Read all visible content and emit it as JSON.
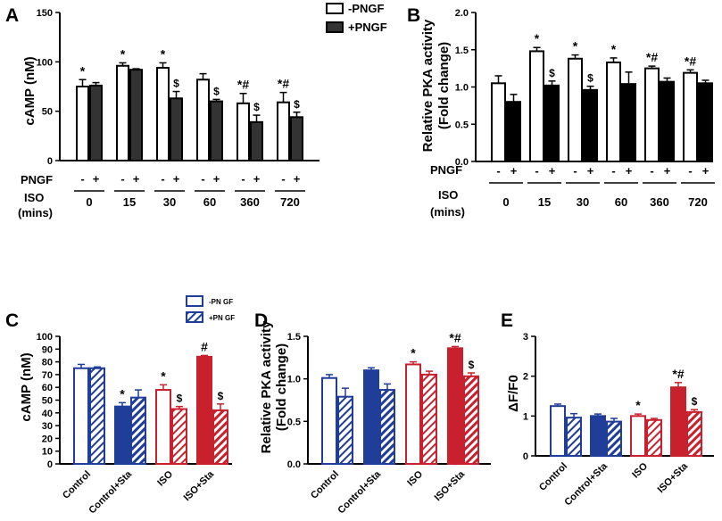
{
  "chart_data": [
    {
      "id": "A",
      "panel_label": "A",
      "type": "bar",
      "ylabel": "cAMP (nM)",
      "ylim": [
        0,
        150
      ],
      "yticks": [
        0,
        50,
        100,
        150
      ],
      "row_labels": {
        "pngf": "PNGF",
        "iso": "ISO",
        "iso_unit": "(mins)"
      },
      "pngf_signs": [
        "-",
        "+"
      ],
      "categories": [
        "0",
        "15",
        "30",
        "60",
        "360",
        "720"
      ],
      "legend": [
        "-PNGF",
        "+PNGF"
      ],
      "series": [
        {
          "name": "-PNGF",
          "values": [
            75,
            96,
            94,
            82,
            58,
            59
          ],
          "errors": [
            7,
            3,
            5,
            6,
            10,
            10
          ],
          "fill": "#ffffff",
          "stroke": "#000000",
          "pattern": "none"
        },
        {
          "name": "+PNGF",
          "values": [
            76,
            92,
            63,
            60,
            39,
            44
          ],
          "errors": [
            3,
            1,
            7,
            2,
            7,
            5
          ],
          "fill": "#333333",
          "stroke": "#000000",
          "pattern": "none"
        }
      ],
      "annotations": [
        [
          "*",
          "*",
          "*",
          "",
          "*#",
          "*#"
        ],
        [
          "",
          "",
          "$",
          "$",
          "$",
          "$"
        ]
      ]
    },
    {
      "id": "B",
      "panel_label": "B",
      "type": "bar",
      "ylabel": "Relative PKA activity",
      "ylabel2": "(Fold change)",
      "ylim": [
        0,
        2.0
      ],
      "yticks": [
        0.0,
        0.5,
        1.0,
        1.5,
        2.0
      ],
      "row_labels": {
        "pngf": "PNGF",
        "iso": "ISO",
        "iso_unit": "(mins)"
      },
      "pngf_signs": [
        "-",
        "+"
      ],
      "categories": [
        "0",
        "15",
        "30",
        "60",
        "360",
        "720"
      ],
      "series": [
        {
          "name": "-PNGF",
          "values": [
            1.05,
            1.48,
            1.38,
            1.33,
            1.25,
            1.19
          ],
          "errors": [
            0.1,
            0.05,
            0.05,
            0.06,
            0.03,
            0.04
          ],
          "fill": "#ffffff",
          "stroke": "#000000",
          "pattern": "none"
        },
        {
          "name": "+PNGF",
          "values": [
            0.8,
            1.02,
            0.96,
            1.04,
            1.07,
            1.05
          ],
          "errors": [
            0.1,
            0.06,
            0.05,
            0.16,
            0.05,
            0.04
          ],
          "fill": "#000000",
          "stroke": "#000000",
          "pattern": "none"
        }
      ],
      "annotations": [
        [
          "",
          "*",
          "*",
          "*",
          "*#",
          "*#"
        ],
        [
          "",
          "$",
          "$",
          "",
          "",
          ""
        ]
      ]
    },
    {
      "id": "C",
      "panel_label": "C",
      "type": "bar",
      "ylabel": "cAMP (nM)",
      "ylim": [
        0,
        100
      ],
      "yticks": [
        0,
        10,
        20,
        30,
        40,
        50,
        60,
        70,
        80,
        90,
        100
      ],
      "categories": [
        "Control",
        "Control+Sta",
        "ISO",
        "ISO+Sta"
      ],
      "legend": [
        "-PN GF",
        "+PN GF"
      ],
      "series": [
        {
          "name": "-PN GF",
          "values": [
            75,
            45,
            58,
            84
          ],
          "errors": [
            3,
            3,
            4,
            1
          ],
          "fill": [
            "#ffffff",
            "#1f3d99",
            "#ffffff",
            "#c8202d"
          ],
          "stroke": [
            "#1f3d99",
            "#1f3d99",
            "#c8202d",
            "#c8202d"
          ],
          "pattern": "none"
        },
        {
          "name": "+PN GF",
          "values": [
            75,
            52,
            43,
            42
          ],
          "errors": [
            1,
            6,
            2,
            5
          ],
          "fill": [
            "#ffffff",
            "#1f3d99",
            "#ffffff",
            "#c8202d"
          ],
          "stroke": [
            "#1f3d99",
            "#1f3d99",
            "#c8202d",
            "#c8202d"
          ],
          "pattern": "hatch"
        }
      ],
      "annotations": [
        [
          "",
          "*",
          "*",
          "#"
        ],
        [
          "",
          "",
          "$",
          "$"
        ]
      ]
    },
    {
      "id": "D",
      "panel_label": "D",
      "type": "bar",
      "ylabel": "Relative PKA activity",
      "ylabel2": "(Fold change)",
      "ylim": [
        0,
        1.5
      ],
      "yticks": [
        0.0,
        0.5,
        1.0,
        1.5
      ],
      "categories": [
        "Control",
        "Control+Sta",
        "ISO",
        "ISO+Sta"
      ],
      "series": [
        {
          "name": "-PN GF",
          "values": [
            1.01,
            1.1,
            1.17,
            1.36
          ],
          "errors": [
            0.04,
            0.03,
            0.03,
            0.02
          ],
          "fill": [
            "#ffffff",
            "#1f3d99",
            "#ffffff",
            "#c8202d"
          ],
          "stroke": [
            "#1f3d99",
            "#1f3d99",
            "#c8202d",
            "#c8202d"
          ],
          "pattern": "none"
        },
        {
          "name": "+PN GF",
          "values": [
            0.79,
            0.87,
            1.05,
            1.03
          ],
          "errors": [
            0.1,
            0.07,
            0.04,
            0.04
          ],
          "fill": [
            "#ffffff",
            "#1f3d99",
            "#ffffff",
            "#c8202d"
          ],
          "stroke": [
            "#1f3d99",
            "#1f3d99",
            "#c8202d",
            "#c8202d"
          ],
          "pattern": "hatch"
        }
      ],
      "annotations": [
        [
          "",
          "",
          "*",
          "*#"
        ],
        [
          "",
          "",
          "",
          "$"
        ]
      ]
    },
    {
      "id": "E",
      "panel_label": "E",
      "type": "bar",
      "ylabel": "ΔF/F0",
      "ylim": [
        0,
        3
      ],
      "yticks": [
        0,
        1,
        2,
        3
      ],
      "categories": [
        "Control",
        "Control+Sta",
        "ISO",
        "ISO+Sta"
      ],
      "series": [
        {
          "name": "-PN GF",
          "values": [
            1.25,
            1.0,
            1.0,
            1.72
          ],
          "errors": [
            0.05,
            0.05,
            0.05,
            0.12
          ],
          "fill": [
            "#ffffff",
            "#1f3d99",
            "#ffffff",
            "#c8202d"
          ],
          "stroke": [
            "#1f3d99",
            "#1f3d99",
            "#c8202d",
            "#c8202d"
          ],
          "pattern": "none"
        },
        {
          "name": "+PN GF",
          "values": [
            0.96,
            0.86,
            0.9,
            1.1
          ],
          "errors": [
            0.1,
            0.08,
            0.04,
            0.06
          ],
          "fill": [
            "#ffffff",
            "#1f3d99",
            "#ffffff",
            "#c8202d"
          ],
          "stroke": [
            "#1f3d99",
            "#1f3d99",
            "#c8202d",
            "#c8202d"
          ],
          "pattern": "hatch"
        }
      ],
      "annotations": [
        [
          "",
          "",
          "*",
          "*#"
        ],
        [
          "",
          "",
          "",
          "$"
        ]
      ]
    }
  ]
}
